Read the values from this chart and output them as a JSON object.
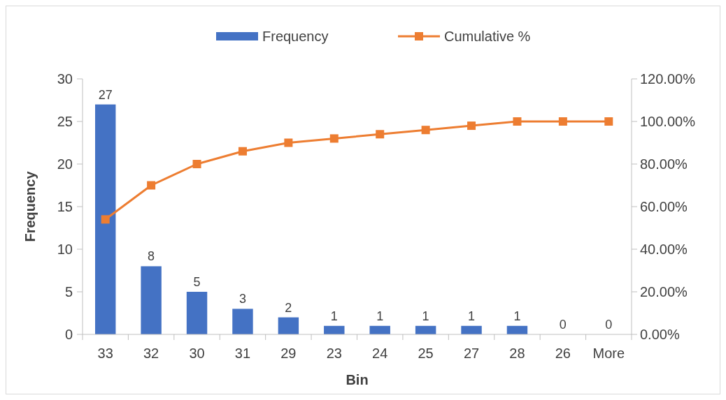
{
  "chart_data": {
    "type": "bar",
    "xlabel": "Bin",
    "ylabel": "Frequency",
    "categories": [
      "33",
      "32",
      "30",
      "31",
      "29",
      "23",
      "24",
      "25",
      "27",
      "28",
      "26",
      "More"
    ],
    "series": [
      {
        "name": "Frequency",
        "color": "#4472c4",
        "values": [
          27,
          8,
          5,
          3,
          2,
          1,
          1,
          1,
          1,
          1,
          0,
          0
        ],
        "value_labels": [
          "27",
          "8",
          "5",
          "3",
          "2",
          "1",
          "1",
          "1",
          "1",
          "1",
          "0",
          "0"
        ]
      },
      {
        "name": "Cumulative %",
        "type": "line",
        "axis": "y2",
        "color": "#ed7d31",
        "marker": "square",
        "values": [
          54,
          70,
          80,
          86,
          90,
          92,
          94,
          96,
          98,
          100,
          100,
          100
        ]
      }
    ],
    "ylim": [
      0,
      30
    ],
    "yticks": [
      0,
      5,
      10,
      15,
      20,
      25,
      30
    ],
    "y2lim": [
      0,
      120
    ],
    "y2ticks": [
      {
        "value": 0,
        "label": "0.00%"
      },
      {
        "value": 20,
        "label": "20.00%"
      },
      {
        "value": 40,
        "label": "40.00%"
      },
      {
        "value": 60,
        "label": "60.00%"
      },
      {
        "value": 80,
        "label": "80.00%"
      },
      {
        "value": 100,
        "label": "100.00%"
      },
      {
        "value": 120,
        "label": "120.00%"
      }
    ],
    "legend": "top",
    "grid": false
  }
}
